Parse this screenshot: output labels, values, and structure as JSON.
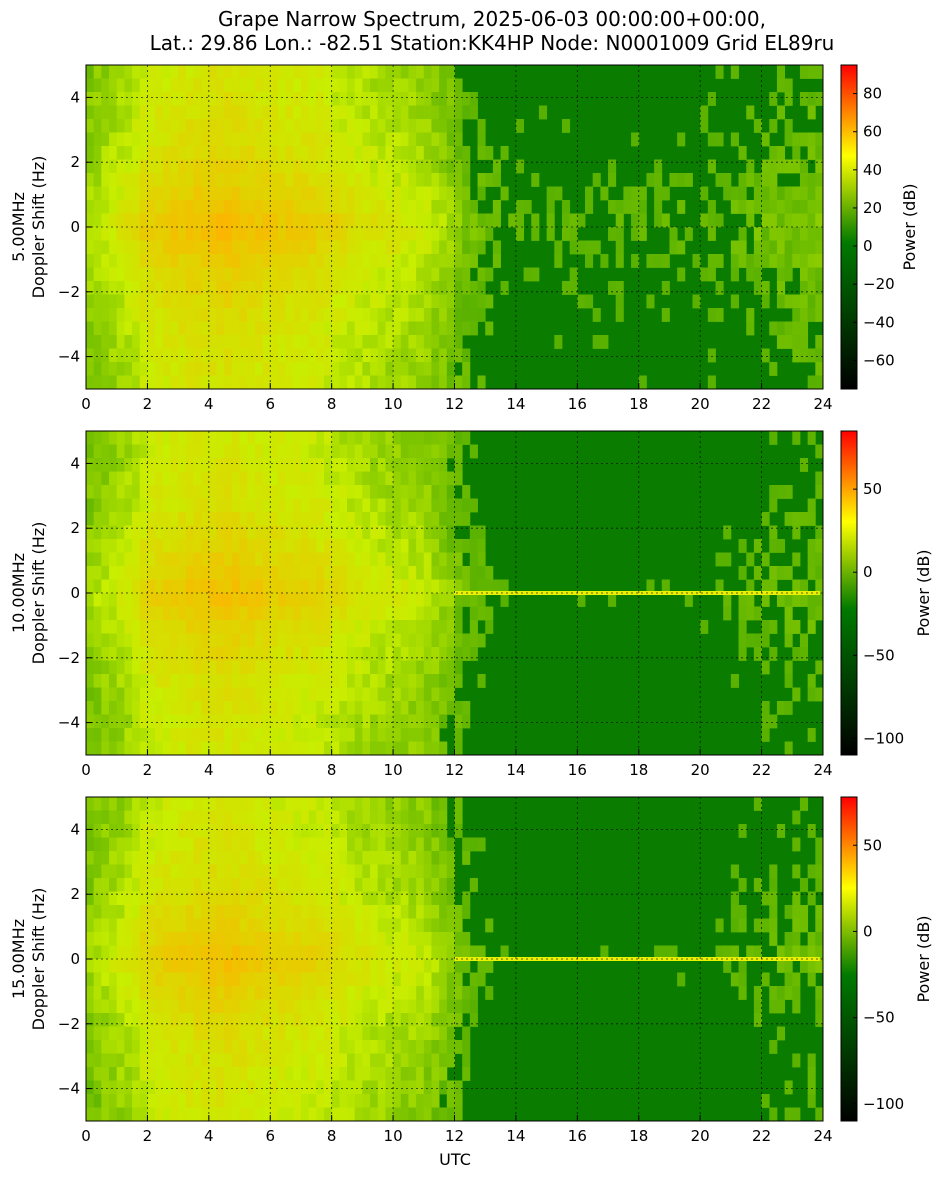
{
  "title_line1": "Grape Narrow Spectrum, 2025-06-03 00:00:00+00:00,",
  "title_line2": "Lat.: 29.86 Lon.: -82.51 Station:KK4HP Node: N0001009 Grid EL89ru",
  "xlabel": "UTC",
  "colorbar_label": "Power (dB)",
  "chart_data": [
    {
      "type": "heatmap",
      "ylabel_freq": "5.00MHz",
      "ylabel": "Doppler Shift (Hz)",
      "xlim": [
        0,
        24
      ],
      "ylim": [
        -5,
        5
      ],
      "xticks": [
        "0",
        "2",
        "4",
        "6",
        "8",
        "10",
        "12",
        "14",
        "16",
        "18",
        "20",
        "22",
        "24"
      ],
      "yticks": [
        "4",
        "2",
        "0",
        "−2",
        "−4"
      ],
      "colorbar_range": [
        -75,
        95
      ],
      "colorbar_ticks": [
        "80",
        "60",
        "40",
        "20",
        "0",
        "−20",
        "−40",
        "−60"
      ],
      "grid": true
    },
    {
      "type": "heatmap",
      "ylabel_freq": "10.00MHz",
      "ylabel": "Doppler Shift (Hz)",
      "xlim": [
        0,
        24
      ],
      "ylim": [
        -5,
        5
      ],
      "xticks": [
        "0",
        "2",
        "4",
        "6",
        "8",
        "10",
        "12",
        "14",
        "16",
        "18",
        "20",
        "22",
        "24"
      ],
      "yticks": [
        "4",
        "2",
        "0",
        "−2",
        "−4"
      ],
      "colorbar_range": [
        -110,
        85
      ],
      "colorbar_ticks": [
        "50",
        "0",
        "−50",
        "−100"
      ],
      "grid": true
    },
    {
      "type": "heatmap",
      "ylabel_freq": "15.00MHz",
      "ylabel": "Doppler Shift (Hz)",
      "xlim": [
        0,
        24
      ],
      "ylim": [
        -5,
        5
      ],
      "xticks": [
        "0",
        "2",
        "4",
        "6",
        "8",
        "10",
        "12",
        "14",
        "16",
        "18",
        "20",
        "22",
        "24"
      ],
      "yticks": [
        "4",
        "2",
        "0",
        "−2",
        "−4"
      ],
      "colorbar_range": [
        -110,
        78
      ],
      "colorbar_ticks": [
        "50",
        "0",
        "−50",
        "−100"
      ],
      "grid": true
    }
  ],
  "colors": {
    "low": "#000000",
    "mid_green": "#008000",
    "yellow": "#ffff00",
    "high": "#ff0000"
  }
}
